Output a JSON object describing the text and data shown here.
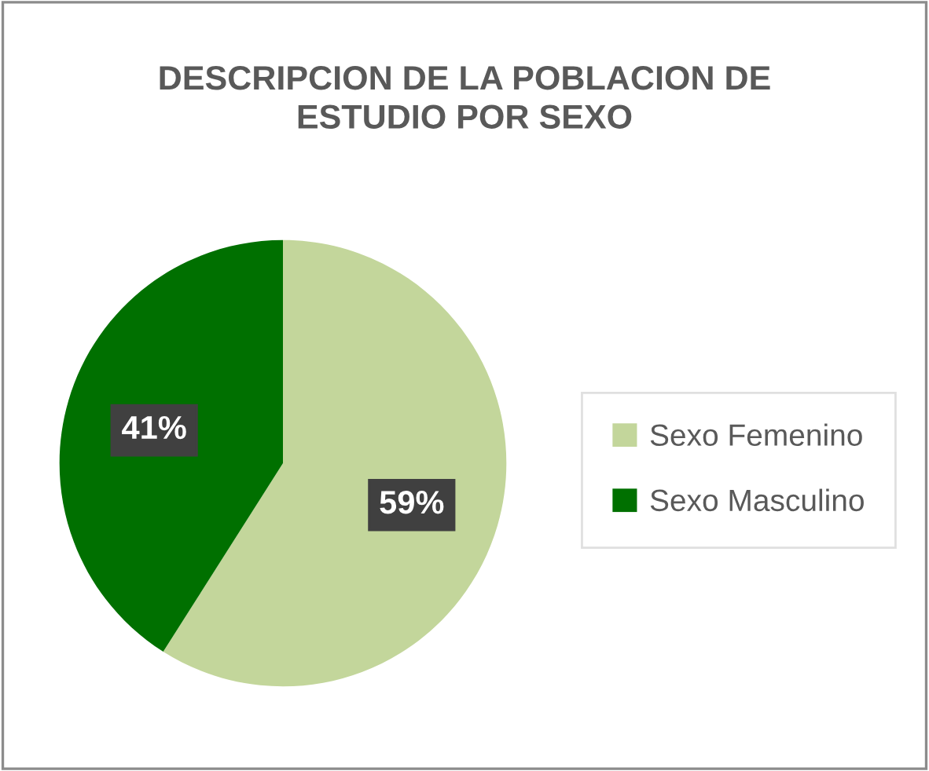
{
  "chart_data": {
    "type": "pie",
    "title": "DESCRIPCION DE LA POBLACION DE\nESTUDIO POR SEXO",
    "categories": [
      "Sexo Femenino",
      "Sexo Masculino"
    ],
    "values": [
      59,
      41
    ],
    "value_labels": [
      "59%",
      "41%"
    ],
    "colors": [
      "#c3d69b",
      "#007000"
    ],
    "legend": "right"
  }
}
